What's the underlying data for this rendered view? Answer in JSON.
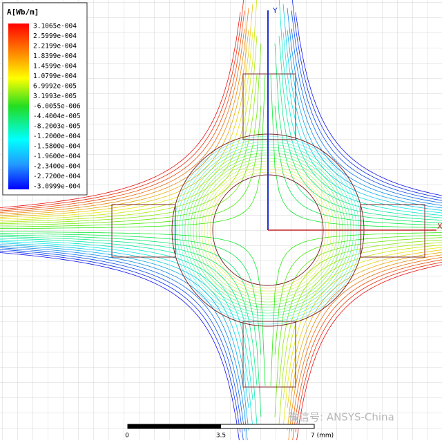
{
  "legend": {
    "title": "A[Wb/m]",
    "labels": [
      "3.1065e-004",
      "2.5999e-004",
      "2.2199e-004",
      "1.8399e-004",
      "1.4599e-004",
      "1.0799e-004",
      "6.9992e-005",
      "3.1993e-005",
      "-6.0055e-006",
      "-4.4004e-005",
      "-8.2003e-005",
      "-1.2000e-004",
      "-1.5800e-004",
      "-1.9600e-004",
      "-2.3400e-004",
      "-2.7200e-004",
      "-3.0999e-004"
    ]
  },
  "axes": {
    "y": "Y",
    "x": "X"
  },
  "scale_bar": {
    "labels": [
      "0",
      "3.5",
      "7 (mm)"
    ]
  },
  "watermark": "微信号: ANSYS-China"
}
